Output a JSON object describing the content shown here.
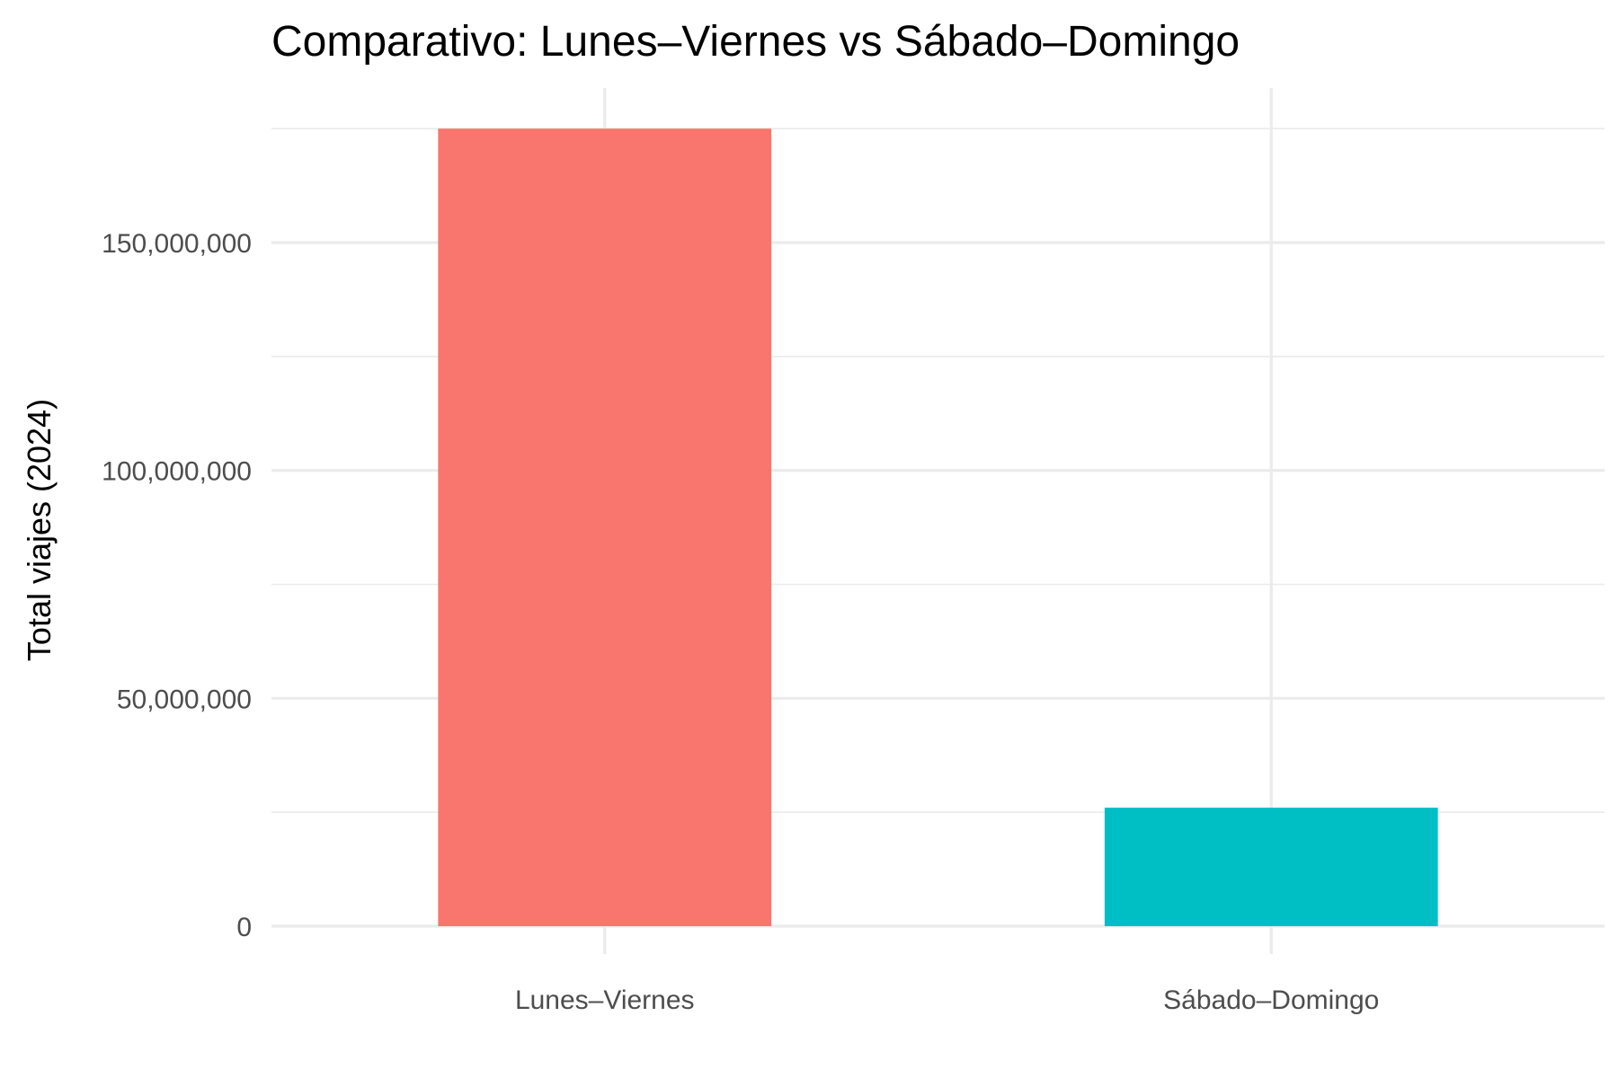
{
  "colors": {
    "background": "#ffffff",
    "grid": "#ebebeb",
    "tick_text": "#4d4d4d",
    "title_text": "#000000"
  },
  "chart_data": {
    "type": "bar",
    "title": "Comparativo: Lunes–Viernes vs Sábado–Domingo",
    "xlabel": "",
    "ylabel": "Total viajes (2024)",
    "categories": [
      "Lunes–Viernes",
      "Sábado–Domingo"
    ],
    "values": [
      175000000,
      26000000
    ],
    "bar_colors": [
      "#F8766D",
      "#00BFC4"
    ],
    "ylim": [
      0,
      184000000
    ],
    "y_ticks": [
      0,
      50000000,
      100000000,
      150000000
    ],
    "y_tick_labels": [
      "0",
      "50,000,000",
      "100,000,000",
      "150,000,000"
    ],
    "y_minor_ticks": [
      25000000,
      75000000,
      125000000,
      175000000
    ],
    "grid": true,
    "legend": "none"
  }
}
